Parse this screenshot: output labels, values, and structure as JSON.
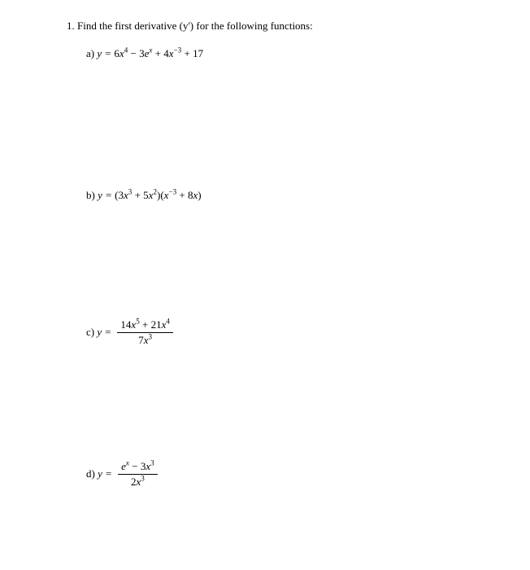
{
  "question": {
    "number": "1.",
    "prompt": "Find the first derivative (y') for the following functions:"
  },
  "parts": {
    "a": {
      "label": "a)",
      "lhs": "y =",
      "terms": {
        "t1_coef": "6",
        "t1_var": "x",
        "t1_exp": "4",
        "t2_sign": "−",
        "t2_coef": "3",
        "t2_base": "e",
        "t2_exp": "x",
        "t3_sign": "+",
        "t3_coef": "4",
        "t3_var": "x",
        "t3_exp": "−3",
        "t4_sign": "+",
        "t4_val": "17"
      }
    },
    "b": {
      "label": "b)",
      "lhs": "y =",
      "factor1": {
        "open": "(",
        "t1_coef": "3",
        "t1_var": "x",
        "t1_exp": "3",
        "t2_sign": "+",
        "t2_coef": "5",
        "t2_var": "x",
        "t2_exp": "2",
        "close": ")"
      },
      "factor2": {
        "open": "(",
        "t1_var": "x",
        "t1_exp": "−3",
        "t2_sign": "+",
        "t2_coef": "8",
        "t2_var": "x",
        "close": ")"
      }
    },
    "c": {
      "label": "c)",
      "lhs": "y =",
      "num": {
        "t1_coef": "14",
        "t1_var": "x",
        "t1_exp": "5",
        "t2_sign": "+",
        "t2_coef": "21",
        "t2_var": "x",
        "t2_exp": "4"
      },
      "den": {
        "t1_coef": "7",
        "t1_var": "x",
        "t1_exp": "3"
      }
    },
    "d": {
      "label": "d)",
      "lhs": "y =",
      "num": {
        "t1_base": "e",
        "t1_exp": "x",
        "t2_sign": "−",
        "t2_coef": "3",
        "t2_var": "x",
        "t2_exp": "3"
      },
      "den": {
        "t1_coef": "2",
        "t1_var": "x",
        "t1_exp": "3"
      }
    }
  },
  "style": {
    "font_family": "Times New Roman",
    "font_size_pt": 10,
    "text_color": "#000000",
    "background_color": "#ffffff"
  }
}
